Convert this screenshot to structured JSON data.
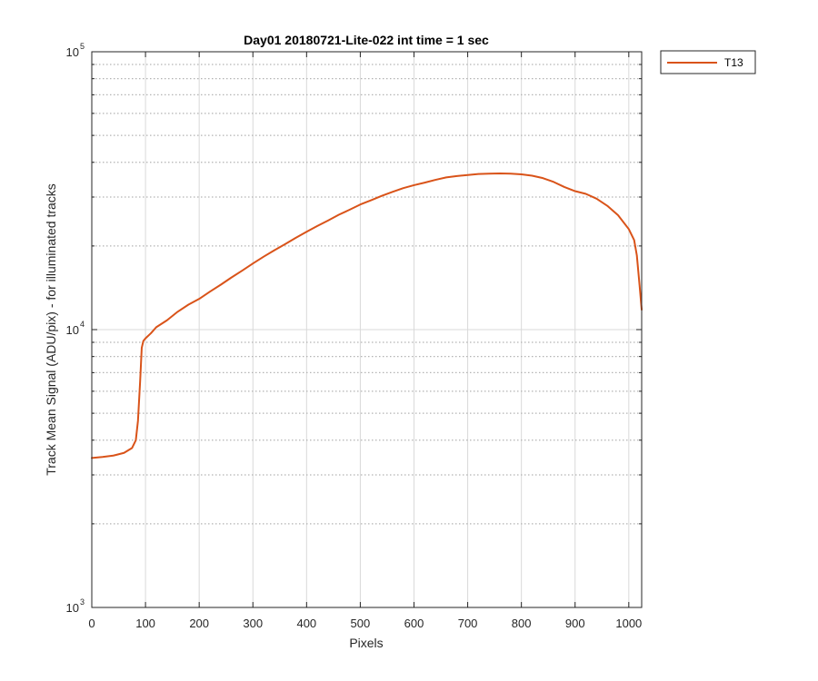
{
  "chart_data": {
    "type": "line",
    "title": "Day01 20180721-Lite-022 int time = 1 sec",
    "xlabel": "Pixels",
    "ylabel": "Track Mean Signal (ADU/pix) - for illuminated tracks",
    "xlim": [
      0,
      1024
    ],
    "ylim": [
      1000,
      100000
    ],
    "yscale": "log",
    "x_ticks": [
      0,
      100,
      200,
      300,
      400,
      500,
      600,
      700,
      800,
      900,
      1000
    ],
    "x_tick_labels": [
      "0",
      "100",
      "200",
      "300",
      "400",
      "500",
      "600",
      "700",
      "800",
      "900",
      "1000"
    ],
    "y_ticks": [
      {
        "value": 1000,
        "base": "10",
        "exp": "3"
      },
      {
        "value": 10000,
        "base": "10",
        "exp": "4"
      },
      {
        "value": 100000,
        "base": "10",
        "exp": "5"
      }
    ],
    "grid": true,
    "minor_grid_y": true,
    "legend_position": "outside-top-right",
    "series": [
      {
        "name": "T13",
        "color": "#D95319",
        "x": [
          0,
          20,
          40,
          60,
          75,
          82,
          86,
          90,
          93,
          96,
          100,
          110,
          120,
          140,
          160,
          180,
          200,
          220,
          240,
          260,
          280,
          300,
          320,
          340,
          360,
          380,
          400,
          420,
          440,
          460,
          480,
          500,
          520,
          540,
          560,
          580,
          600,
          620,
          640,
          660,
          680,
          700,
          720,
          740,
          760,
          780,
          800,
          820,
          840,
          860,
          880,
          900,
          920,
          940,
          960,
          980,
          1000,
          1010,
          1015,
          1020,
          1024
        ],
        "y": [
          3450,
          3480,
          3520,
          3600,
          3750,
          4000,
          4700,
          6500,
          8600,
          9100,
          9300,
          9700,
          10200,
          10800,
          11600,
          12300,
          12900,
          13700,
          14500,
          15400,
          16300,
          17300,
          18300,
          19300,
          20300,
          21400,
          22500,
          23600,
          24700,
          25900,
          27000,
          28200,
          29200,
          30300,
          31300,
          32300,
          33100,
          33800,
          34600,
          35300,
          35700,
          36000,
          36300,
          36400,
          36500,
          36400,
          36200,
          35800,
          35100,
          34000,
          32600,
          31500,
          30800,
          29600,
          27900,
          25800,
          23000,
          21000,
          18500,
          14500,
          11800
        ]
      }
    ]
  }
}
